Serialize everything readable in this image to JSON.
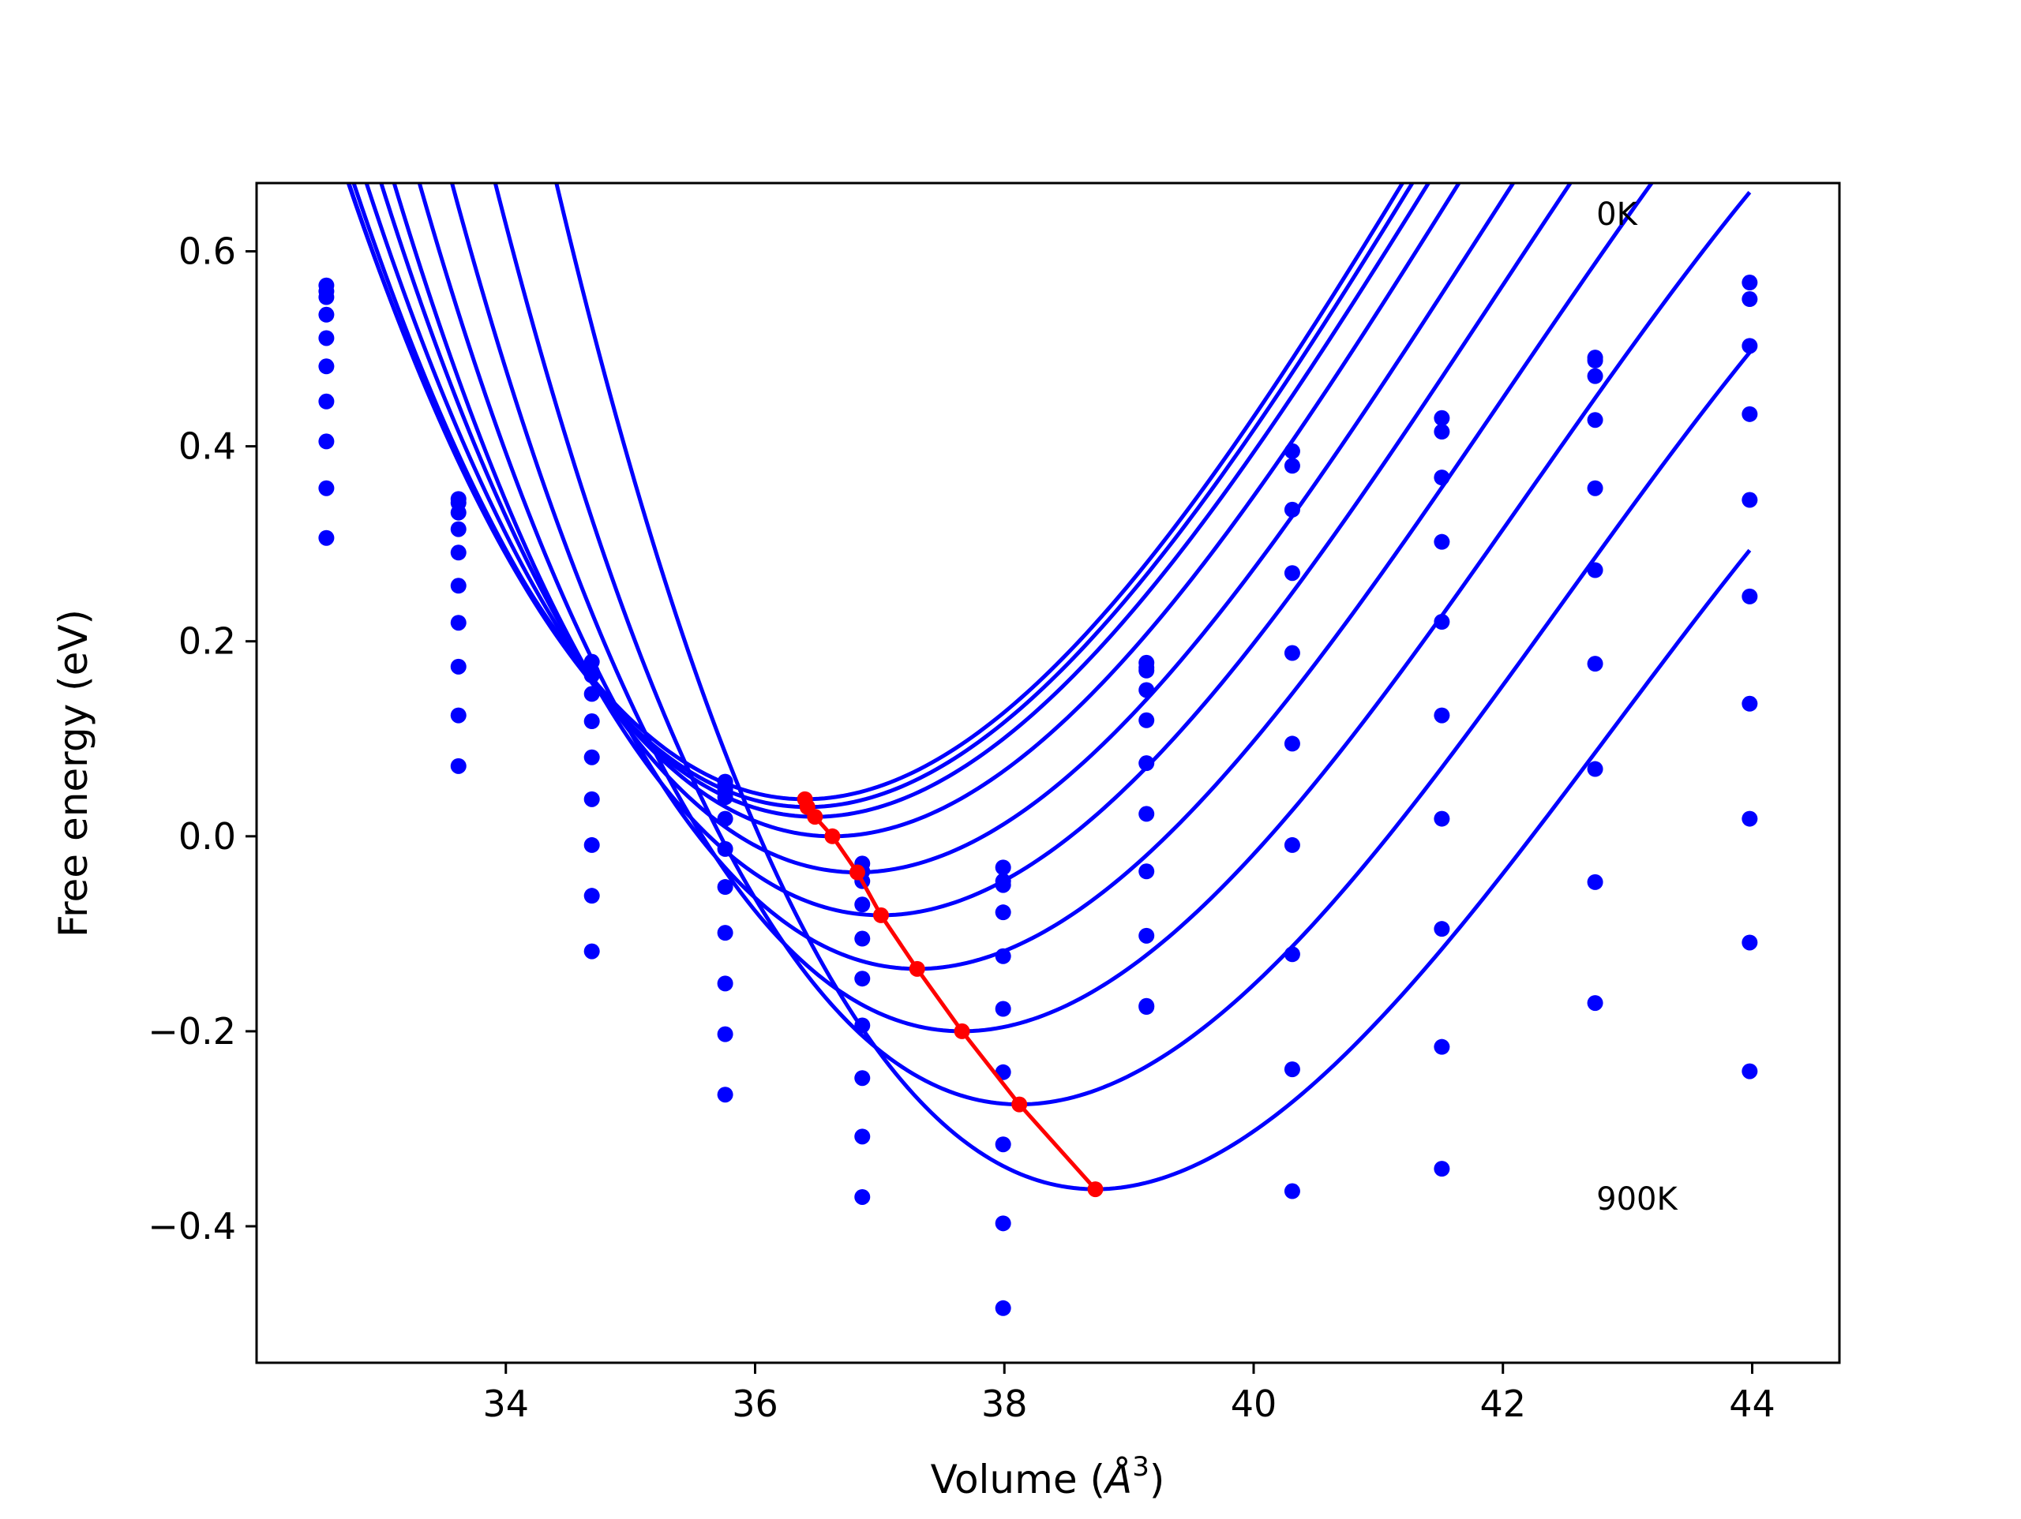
{
  "chart_data": {
    "type": "line",
    "xlabel": "Volume (Å³)",
    "xlabel_parts": {
      "main": "Volume (",
      "symbol": "Å",
      "sup": "3",
      "close": ")"
    },
    "ylabel": "Free energy (eV)",
    "xlim": [
      32.0,
      44.7
    ],
    "ylim": [
      -0.54,
      0.67
    ],
    "xticks": [
      34,
      36,
      38,
      40,
      42,
      44
    ],
    "xtick_labels": [
      "34",
      "36",
      "38",
      "40",
      "42",
      "44"
    ],
    "yticks": [
      -0.4,
      -0.2,
      0.0,
      0.2,
      0.4,
      0.6
    ],
    "ytick_labels": [
      "−0.4",
      "−0.2",
      "0.0",
      "0.2",
      "0.4",
      "0.6"
    ],
    "grid": false,
    "legend": "none",
    "annotations": [
      {
        "text": "0K",
        "x": 42.75,
        "y": 0.627
      },
      {
        "text": "900K",
        "x": 42.75,
        "y": -0.383
      }
    ],
    "colors": {
      "series": "#0000ff",
      "minima": "#ff0000",
      "axes": "#000000"
    },
    "volumes": [
      32.56,
      33.62,
      34.69,
      35.76,
      36.86,
      37.99,
      39.14,
      40.31,
      41.51,
      42.74,
      43.98
    ],
    "curves": [
      {
        "Emin": 0.038,
        "V0": 36.4,
        "c": 0.0386,
        "a": 0.06
      },
      {
        "Emin": 0.03,
        "V0": 36.42,
        "c": 0.0386,
        "a": 0.061
      },
      {
        "Emin": 0.02,
        "V0": 36.48,
        "c": 0.0386,
        "a": 0.062
      },
      {
        "Emin": 0.0,
        "V0": 36.62,
        "c": 0.0388,
        "a": 0.063
      },
      {
        "Emin": -0.037,
        "V0": 36.82,
        "c": 0.0388,
        "a": 0.065
      },
      {
        "Emin": -0.081,
        "V0": 37.01,
        "c": 0.039,
        "a": 0.067
      },
      {
        "Emin": -0.136,
        "V0": 37.3,
        "c": 0.0395,
        "a": 0.07
      },
      {
        "Emin": -0.2,
        "V0": 37.66,
        "c": 0.04,
        "a": 0.073
      },
      {
        "Emin": -0.275,
        "V0": 38.12,
        "c": 0.0405,
        "a": 0.076
      },
      {
        "Emin": -0.362,
        "V0": 38.73,
        "c": 0.041,
        "a": 0.08
      }
    ],
    "data_points": [
      [
        0.565,
        0.346,
        0.179,
        0.056,
        -0.028,
        -0.032,
        0.178,
        0.395,
        0.429,
        0.491,
        0.568
      ],
      [
        0.559,
        0.342,
        0.169,
        0.053,
        -0.036,
        -0.046,
        0.173,
        0.38,
        0.415,
        0.488,
        0.551
      ],
      [
        0.553,
        0.332,
        0.165,
        0.048,
        -0.046,
        -0.05,
        0.17,
        0.335,
        0.368,
        0.472,
        0.503
      ],
      [
        0.535,
        0.315,
        0.146,
        0.04,
        -0.07,
        -0.078,
        0.15,
        0.27,
        0.302,
        0.427,
        0.433
      ],
      [
        0.511,
        0.291,
        0.118,
        0.018,
        -0.105,
        -0.123,
        0.119,
        0.188,
        0.22,
        0.357,
        0.345
      ],
      [
        0.482,
        0.257,
        0.081,
        -0.013,
        -0.146,
        -0.177,
        0.075,
        0.095,
        0.124,
        0.273,
        0.246
      ],
      [
        0.446,
        0.219,
        0.038,
        -0.052,
        -0.194,
        -0.242,
        0.023,
        -0.009,
        0.018,
        0.177,
        0.136
      ],
      [
        0.405,
        0.174,
        -0.009,
        -0.099,
        -0.248,
        -0.316,
        -0.036,
        -0.121,
        -0.095,
        0.069,
        0.018
      ],
      [
        0.357,
        0.124,
        -0.061,
        -0.151,
        -0.308,
        -0.397,
        -0.102,
        -0.239,
        -0.216,
        -0.047,
        -0.109
      ],
      [
        0.306,
        0.072,
        -0.118,
        -0.203,
        -0.37,
        -0.484,
        -0.174,
        -0.364,
        -0.341,
        -0.171,
        -0.241
      ]
    ],
    "extra_points": [
      {
        "x": 35.76,
        "y": -0.265
      },
      {
        "x": 39.14,
        "y": -0.175
      }
    ],
    "minima": {
      "x": [
        36.4,
        36.42,
        36.48,
        36.62,
        36.82,
        37.01,
        37.3,
        37.66,
        38.12,
        38.73
      ],
      "y": [
        0.038,
        0.03,
        0.02,
        0.0,
        -0.037,
        -0.081,
        -0.136,
        -0.2,
        -0.275,
        -0.362
      ]
    }
  }
}
